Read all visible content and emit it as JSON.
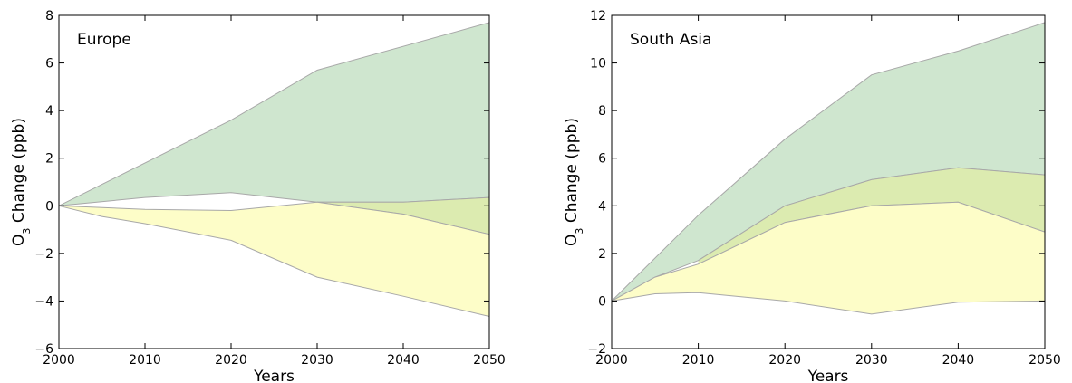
{
  "chart_data": [
    {
      "type": "area",
      "title": "Europe",
      "xlabel": "Years",
      "ylabel_main": "O",
      "ylabel_sub": "3",
      "ylabel_rest": " Change (ppb)",
      "xlim": [
        2000,
        2050
      ],
      "ylim": [
        -6,
        8
      ],
      "xticks": [
        2000,
        2010,
        2020,
        2030,
        2040,
        2050
      ],
      "yticks": [
        -6,
        -4,
        -2,
        0,
        2,
        4,
        6,
        8
      ],
      "grid": false,
      "colors": {
        "green": "#cfe6cf",
        "lime": "#dcebb0",
        "yellow": "#fdfdc8",
        "edge": "#a8a8a8"
      },
      "bands": [
        {
          "color": "green",
          "upper": {
            "x": [
              2000,
              2020,
              2030,
              2050
            ],
            "y": [
              0,
              3.6,
              5.7,
              7.7
            ]
          },
          "lower": {
            "x": [
              2000,
              2010,
              2020,
              2030,
              2040,
              2050
            ],
            "y": [
              0,
              0.35,
              0.55,
              0.15,
              0.15,
              0.35
            ]
          }
        },
        {
          "color": "lime",
          "upper": {
            "x": [
              2030,
              2040,
              2050
            ],
            "y": [
              0.15,
              0.15,
              0.35
            ]
          },
          "lower": {
            "x": [
              2030,
              2040,
              2050
            ],
            "y": [
              0.15,
              -0.35,
              -1.2
            ]
          }
        },
        {
          "color": "yellow",
          "upper": {
            "x": [
              2000,
              2010,
              2020,
              2030,
              2040,
              2050
            ],
            "y": [
              0,
              -0.15,
              -0.2,
              0.15,
              -0.35,
              -1.2
            ]
          },
          "lower": {
            "x": [
              2000,
              2005,
              2010,
              2020,
              2030,
              2040,
              2050
            ],
            "y": [
              0,
              -0.45,
              -0.75,
              -1.45,
              -3.0,
              -3.8,
              -4.65
            ]
          }
        }
      ]
    },
    {
      "type": "area",
      "title": "South Asia",
      "xlabel": "Years",
      "ylabel_main": "O",
      "ylabel_sub": "3",
      "ylabel_rest": " Change (ppb)",
      "xlim": [
        2000,
        2050
      ],
      "ylim": [
        -2,
        12
      ],
      "xticks": [
        2000,
        2010,
        2020,
        2030,
        2040,
        2050
      ],
      "yticks": [
        -2,
        0,
        2,
        4,
        6,
        8,
        10,
        12
      ],
      "grid": false,
      "colors": {
        "green": "#cfe6cf",
        "lime": "#dcebb0",
        "yellow": "#fdfdc8",
        "edge": "#a8a8a8"
      },
      "bands": [
        {
          "color": "green",
          "upper": {
            "x": [
              2000,
              2010,
              2020,
              2030,
              2040,
              2050
            ],
            "y": [
              0,
              3.6,
              6.8,
              9.5,
              10.5,
              11.7
            ]
          },
          "lower": {
            "x": [
              2000,
              2005,
              2010,
              2020,
              2030,
              2040,
              2050
            ],
            "y": [
              0,
              1.0,
              1.7,
              4.0,
              5.1,
              5.6,
              5.3
            ]
          }
        },
        {
          "color": "lime",
          "upper": {
            "x": [
              2010,
              2020,
              2030,
              2040,
              2050
            ],
            "y": [
              1.7,
              4.0,
              5.1,
              5.6,
              5.3
            ]
          },
          "lower": {
            "x": [
              2010,
              2020,
              2030,
              2040,
              2050
            ],
            "y": [
              1.55,
              3.3,
              4.0,
              4.15,
              2.9
            ]
          }
        },
        {
          "color": "yellow",
          "upper": {
            "x": [
              2000,
              2005,
              2010,
              2020,
              2030,
              2040,
              2050
            ],
            "y": [
              0,
              1.0,
              1.55,
              3.3,
              4.0,
              4.15,
              2.9
            ]
          },
          "lower": {
            "x": [
              2000,
              2005,
              2010,
              2020,
              2030,
              2040,
              2050
            ],
            "y": [
              0,
              0.3,
              0.35,
              0.0,
              -0.55,
              -0.05,
              0.0
            ]
          }
        }
      ]
    }
  ]
}
